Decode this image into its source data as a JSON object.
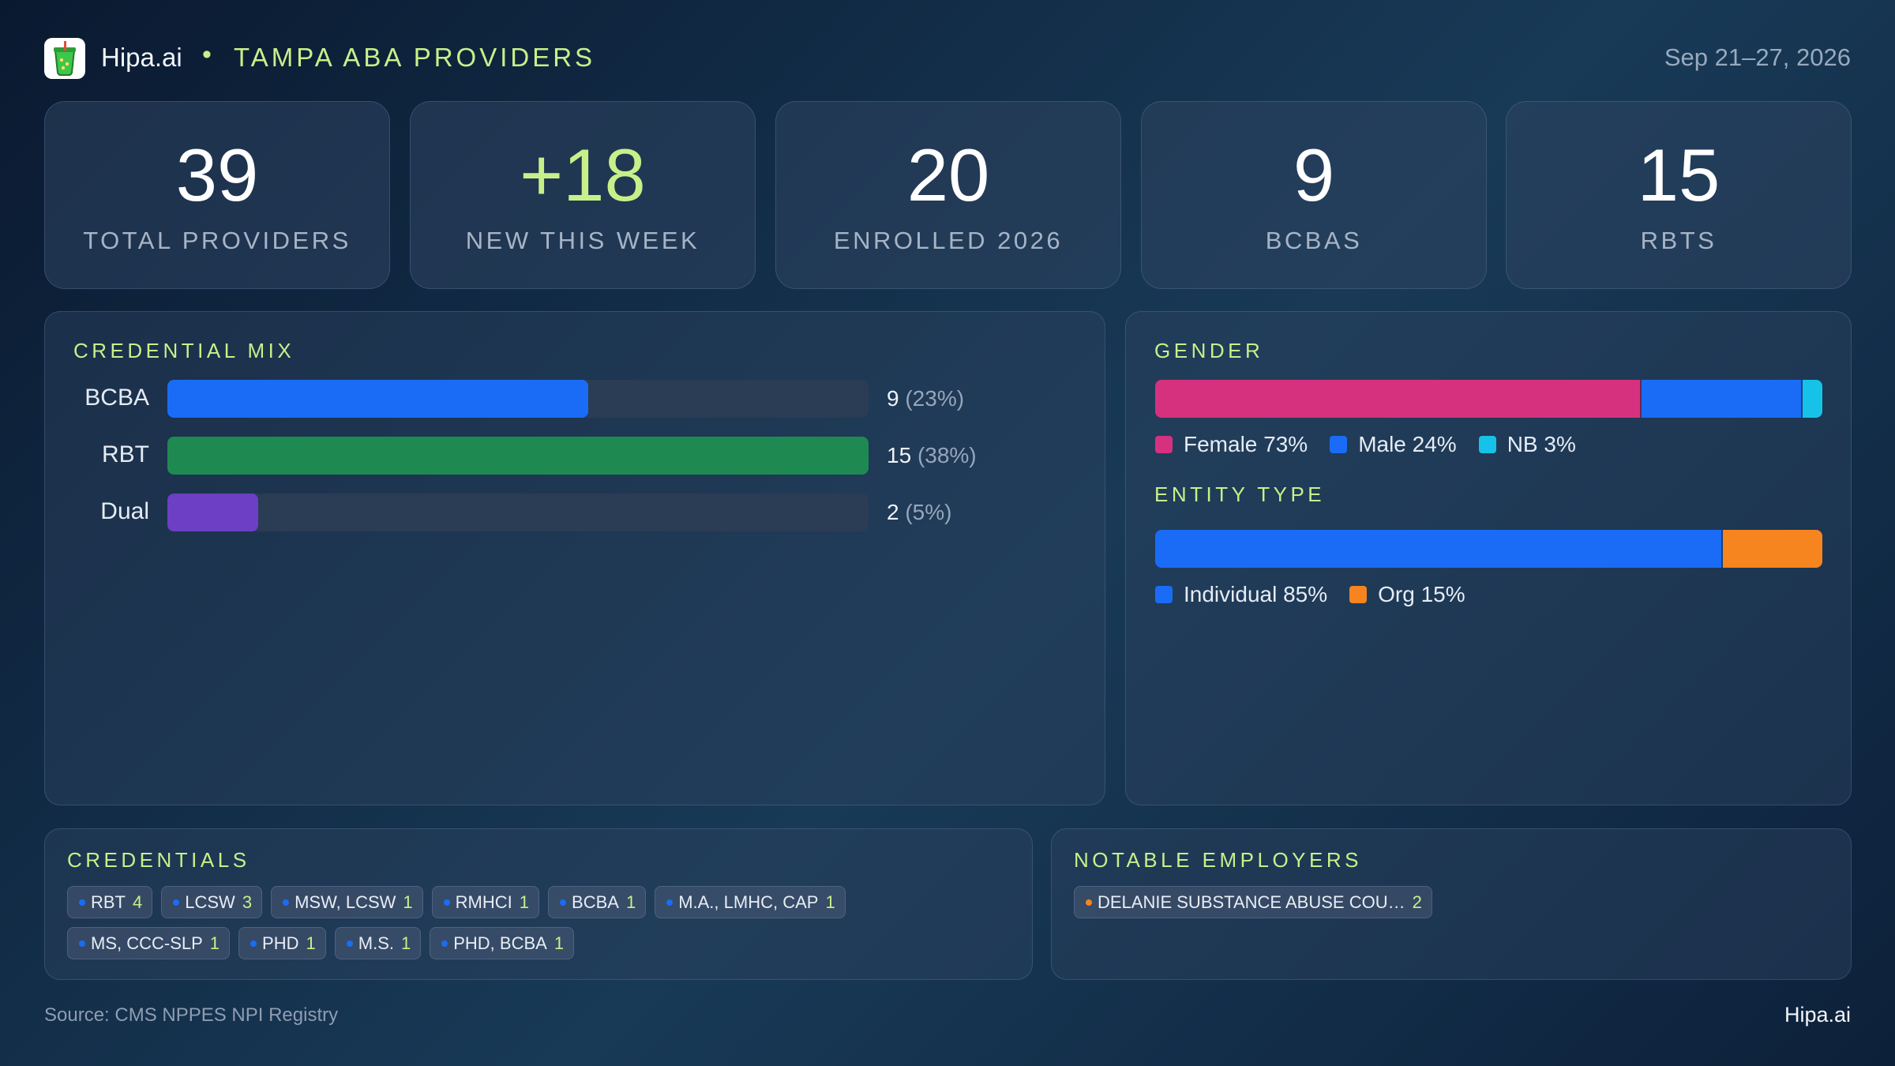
{
  "header": {
    "brand": "Hipa.ai",
    "separator": "•",
    "title": "TAMPA ABA PROVIDERS",
    "date_range": "Sep 21–27, 2026",
    "logo_icon": "cup-icon"
  },
  "kpis": [
    {
      "value": "39",
      "label": "TOTAL PROVIDERS"
    },
    {
      "value": "+18",
      "label": "NEW THIS WEEK"
    },
    {
      "value": "20",
      "label": "ENROLLED 2026"
    },
    {
      "value": "9",
      "label": "BCBAS"
    },
    {
      "value": "15",
      "label": "RBTS"
    }
  ],
  "credential_mix": {
    "title": "CREDENTIAL MIX",
    "rows": [
      {
        "label": "BCBA",
        "count": "9",
        "pct": "(23%)",
        "fraction": 0.6,
        "color": "#1a6cf6"
      },
      {
        "label": "RBT",
        "count": "15",
        "pct": "(38%)",
        "fraction": 1.0,
        "color": "#1e8a52"
      },
      {
        "label": "Dual",
        "count": "2",
        "pct": "(5%)",
        "fraction": 0.13,
        "color": "#6c3fc4"
      }
    ]
  },
  "gender": {
    "title": "GENDER",
    "segments": [
      {
        "label": "Female 73%",
        "fraction": 0.73,
        "color": "#d6317f"
      },
      {
        "label": "Male 24%",
        "fraction": 0.24,
        "color": "#1a6cf6"
      },
      {
        "label": "NB 3%",
        "fraction": 0.03,
        "color": "#17c2e8"
      }
    ]
  },
  "entity_type": {
    "title": "ENTITY TYPE",
    "segments": [
      {
        "label": "Individual 85%",
        "fraction": 0.85,
        "color": "#1a6cf6"
      },
      {
        "label": "Org 15%",
        "fraction": 0.15,
        "color": "#f6841f"
      }
    ]
  },
  "credentials": {
    "title": "CREDENTIALS",
    "dot_color": "#1a6cf6",
    "items": [
      {
        "name": "RBT",
        "count": "4"
      },
      {
        "name": "LCSW",
        "count": "3"
      },
      {
        "name": "MSW, LCSW",
        "count": "1"
      },
      {
        "name": "RMHCI",
        "count": "1"
      },
      {
        "name": "BCBA",
        "count": "1"
      },
      {
        "name": "M.A., LMHC, CAP",
        "count": "1"
      },
      {
        "name": "MS, CCC-SLP",
        "count": "1"
      },
      {
        "name": "PHD",
        "count": "1"
      },
      {
        "name": "M.S.",
        "count": "1"
      },
      {
        "name": "PHD, BCBA",
        "count": "1"
      }
    ]
  },
  "employers": {
    "title": "NOTABLE EMPLOYERS",
    "dot_color": "#f6841f",
    "items": [
      {
        "name": "DELANIE SUBSTANCE ABUSE COU…",
        "count": "2"
      }
    ]
  },
  "footer": {
    "source": "Source: CMS NPPES NPI Registry",
    "brand": "Hipa.ai"
  }
}
